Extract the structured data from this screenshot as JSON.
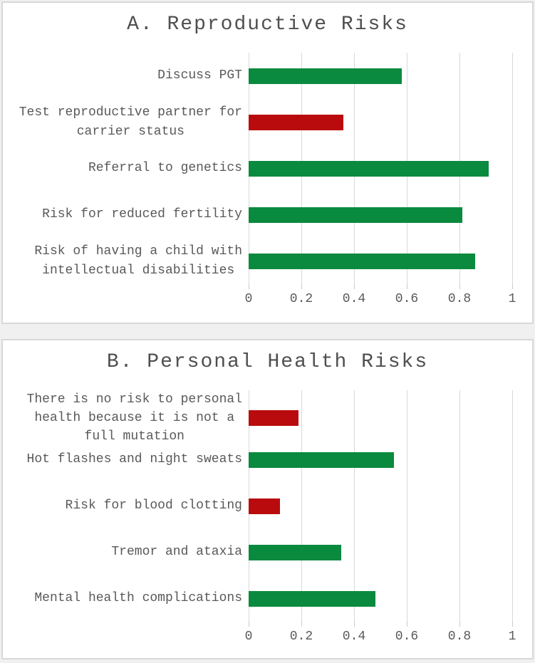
{
  "page": {
    "background": "#f0f0f0",
    "panel_background": "#ffffff",
    "panel_border": "#d8d8d8"
  },
  "colors": {
    "green": "#0a8a3e",
    "red": "#b90b0d",
    "gridline": "#d9d9d9",
    "text": "#595959",
    "title_text": "#4f4f4f"
  },
  "chart_data": [
    {
      "type": "bar",
      "orientation": "horizontal",
      "title": "A. Reproductive Risks",
      "categories": [
        "Discuss PGT",
        "Test reproductive partner for\ncarrier status",
        "Referral to genetics",
        "Risk for reduced fertility",
        "Risk of having a child with\nintellectual disabilities"
      ],
      "values": [
        0.58,
        0.36,
        0.91,
        0.81,
        0.86
      ],
      "bar_colors": [
        "green",
        "red",
        "green",
        "green",
        "green"
      ],
      "xlim": [
        0,
        1
      ],
      "x_ticks": [
        "0",
        "0.2",
        "0.4",
        "0.6",
        "0.8",
        "1"
      ],
      "grid": true,
      "legend": false
    },
    {
      "type": "bar",
      "orientation": "horizontal",
      "title": "B. Personal Health Risks",
      "categories": [
        "There is no risk to personal\nhealth because it is not a\nfull mutation",
        "Hot flashes and night sweats",
        "Risk for blood clotting",
        "Tremor and ataxia",
        "Mental health complications"
      ],
      "values": [
        0.19,
        0.55,
        0.12,
        0.35,
        0.48
      ],
      "bar_colors": [
        "red",
        "green",
        "red",
        "green",
        "green"
      ],
      "xlim": [
        0,
        1
      ],
      "x_ticks": [
        "0",
        "0.2",
        "0.4",
        "0.6",
        "0.8",
        "1"
      ],
      "grid": true,
      "legend": false
    }
  ]
}
